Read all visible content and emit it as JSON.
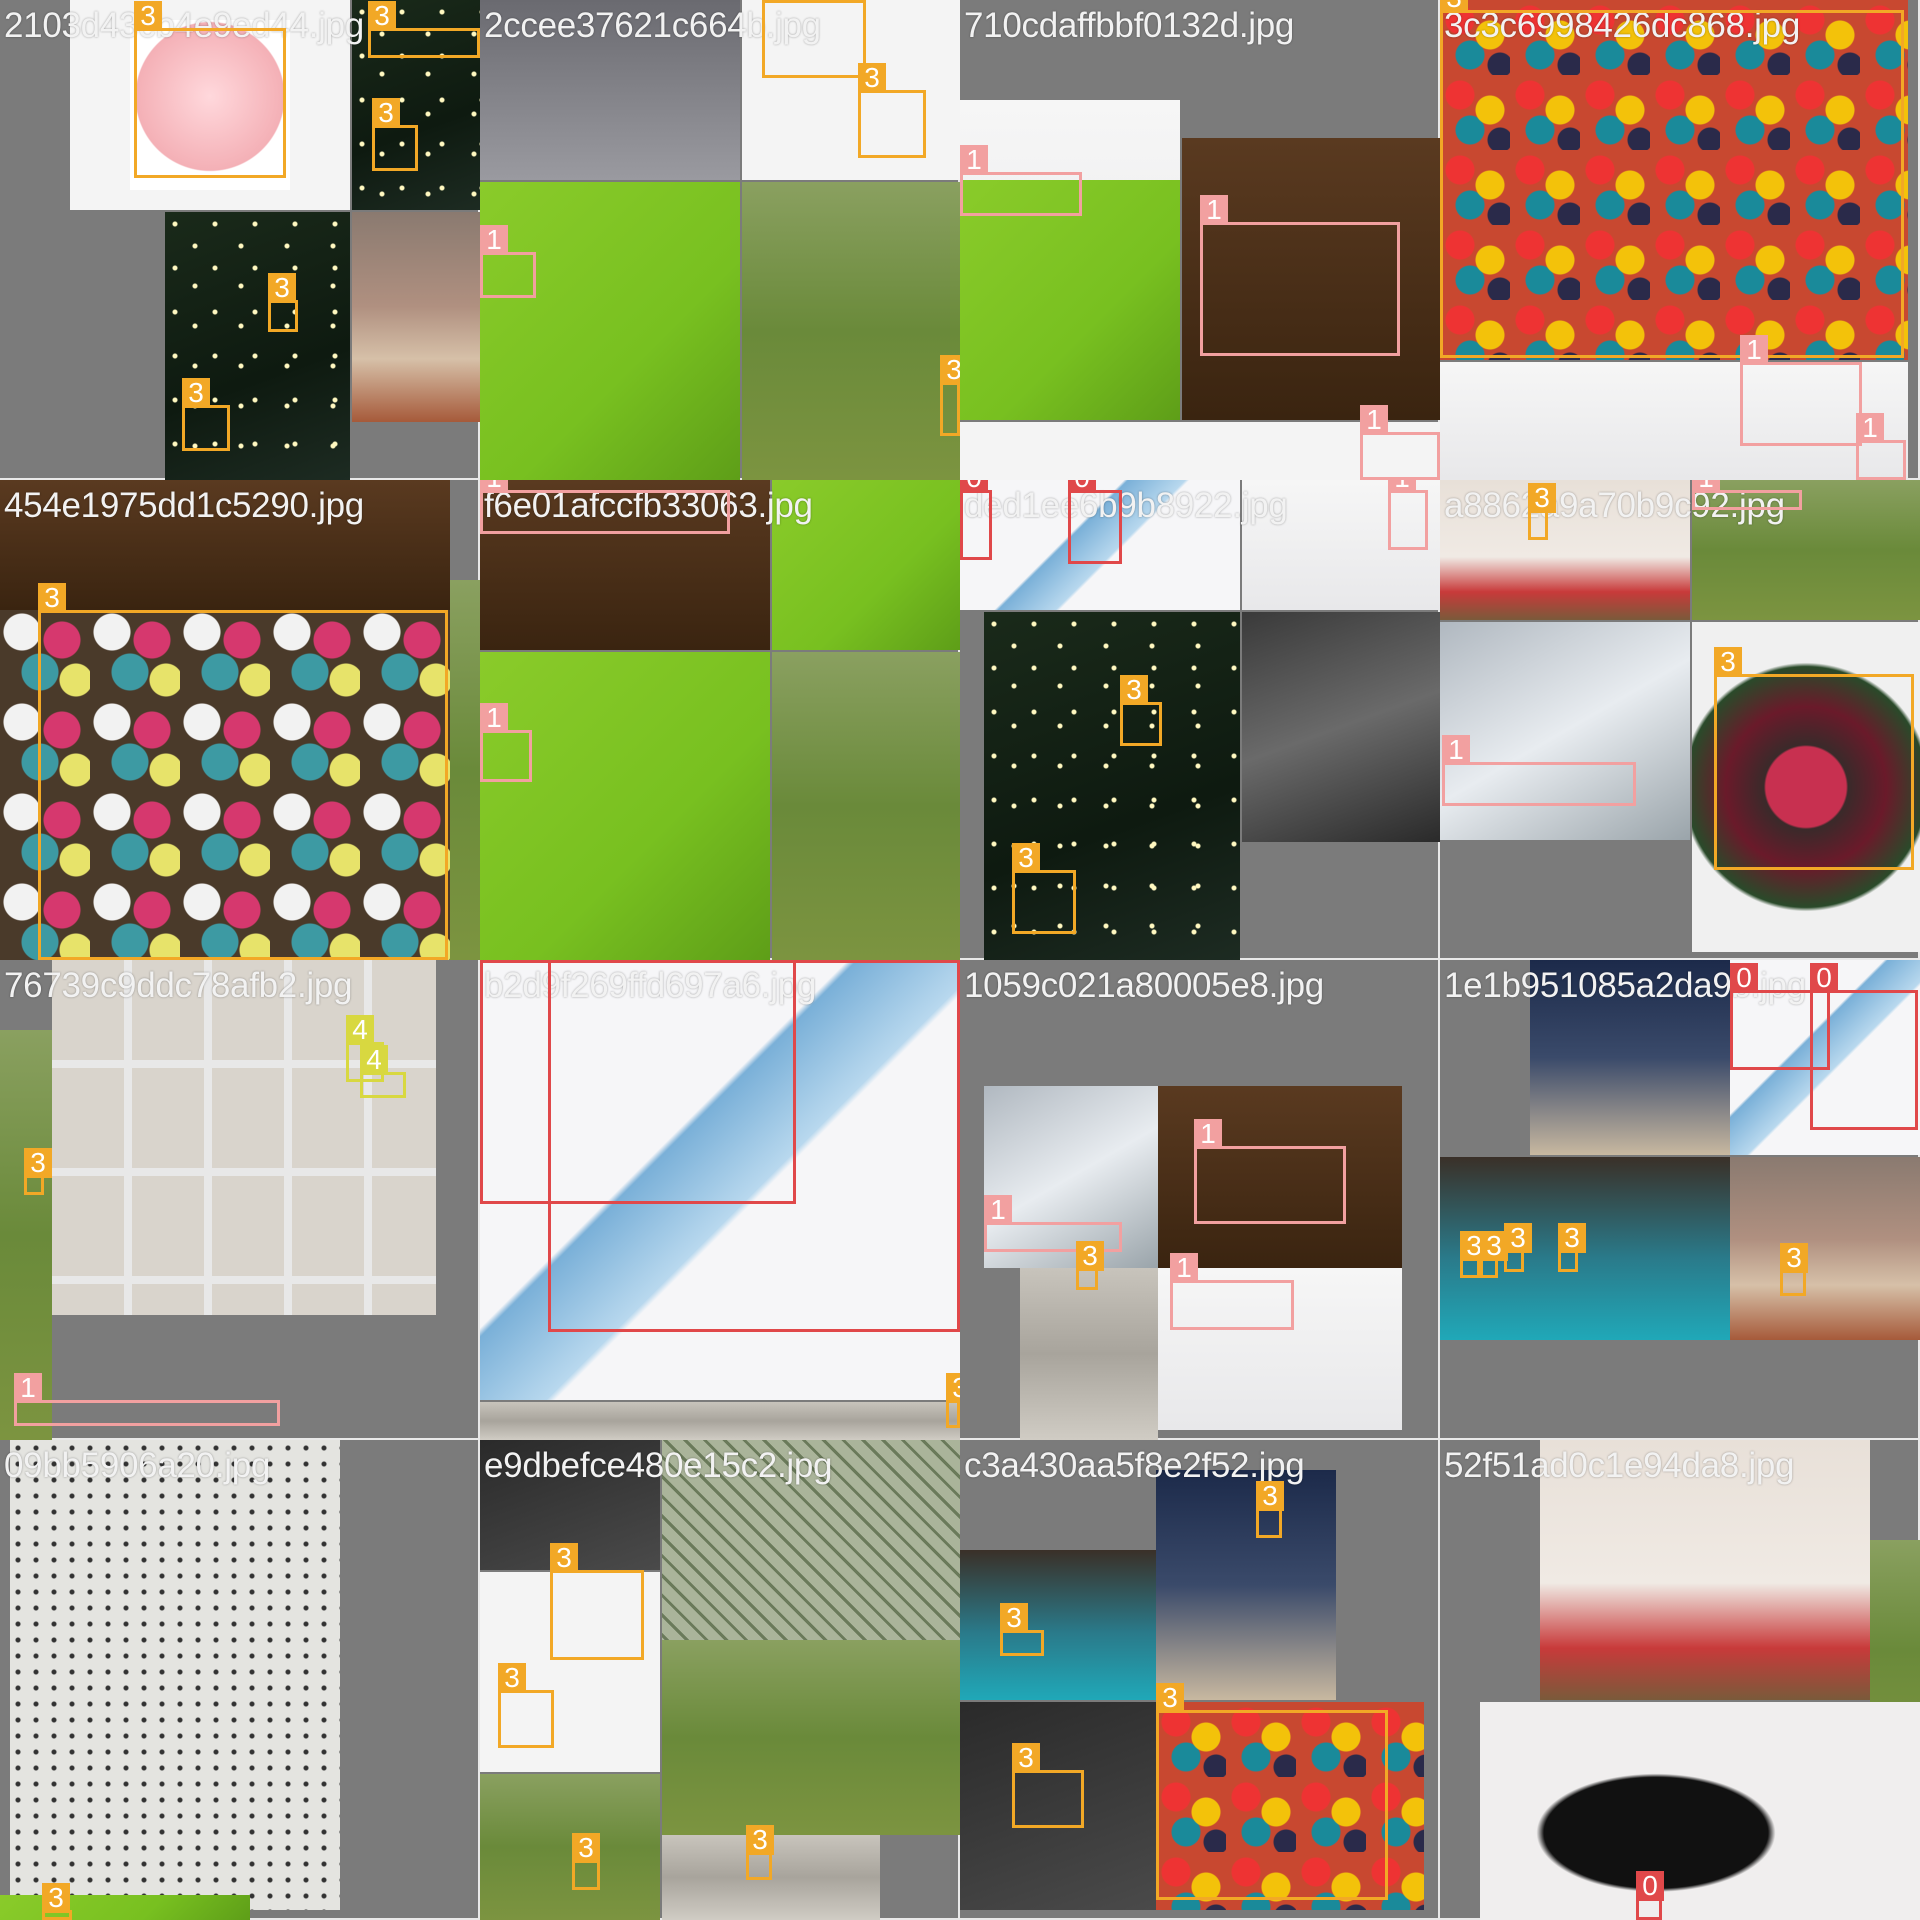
{
  "filenames": [
    "2103d43cb4e9ed44.jpg",
    "2ccee37621c664b.jpg",
    "710cdaffbbf0132d.jpg",
    "3c3c6998426dc868.jpg",
    "454e1975dd1c5290.jpg",
    "f6e01afccfb33063.jpg",
    "ded1ee6b9b8922.jpg",
    "a8862a9a70b9c92.jpg",
    "76739c9ddc78afb2.jpg",
    "b2d9f269ffd697a6.jpg",
    "1059c021a80005e8.jpg",
    "1e1b951085a2da9b.jpg",
    "09bb5906a20.jpg",
    "e9dbefce480e15c2.jpg",
    "c3a430aa5f8e2f52.jpg",
    "52f51ad0c1e94da8.jpg"
  ],
  "class_labels": [
    "0",
    "1",
    "3",
    "4"
  ],
  "class_colors": {
    "0": "#e0484a",
    "1": "#f2a0a0",
    "3": "#f2a826",
    "4": "#d8d840"
  }
}
